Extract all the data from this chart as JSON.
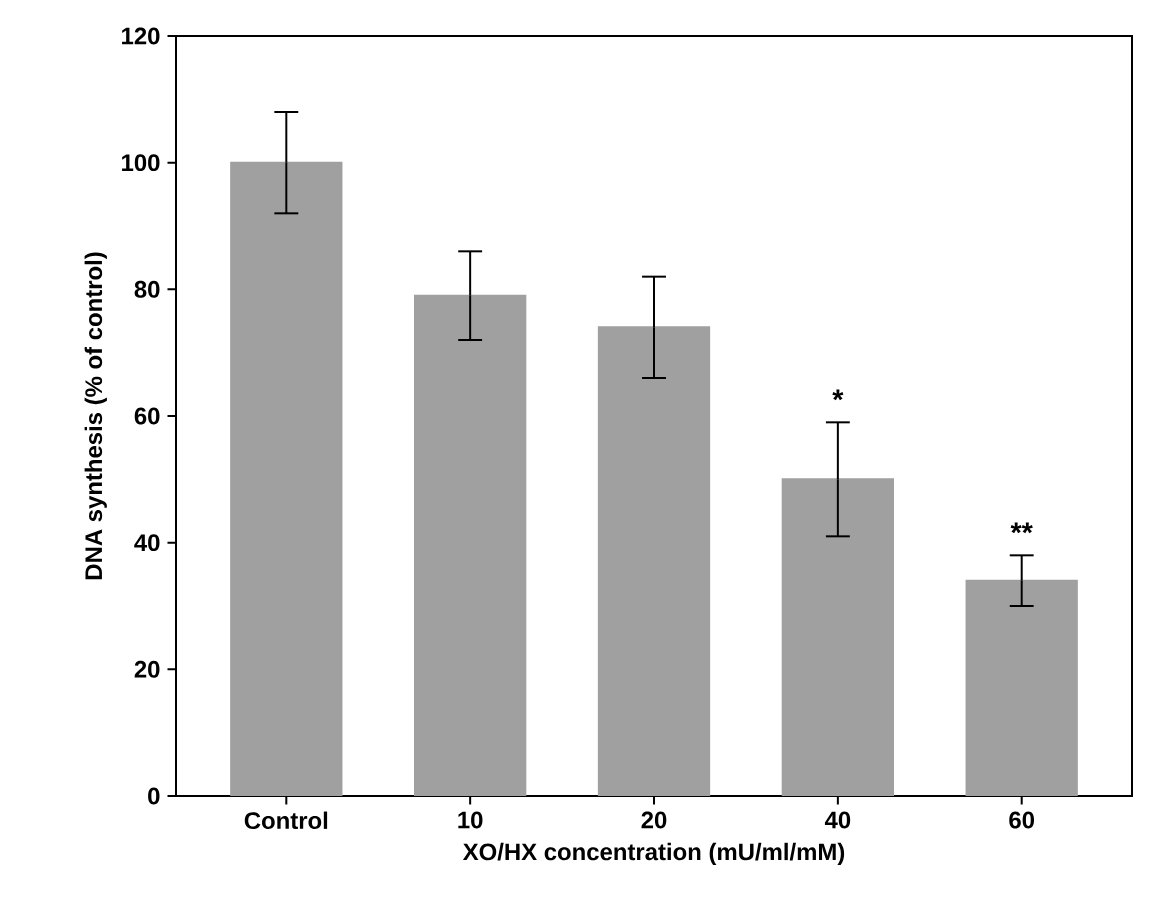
{
  "chart_data": {
    "type": "bar",
    "xlabel": "XO/HX concentration (mU/ml/mM)",
    "ylabel": "DNA synthesis (% of control)",
    "categories": [
      "Control",
      "10",
      "20",
      "40",
      "60"
    ],
    "values": [
      100,
      79,
      74,
      50,
      34
    ],
    "errors": [
      8,
      7,
      8,
      9,
      4
    ],
    "color": "#a0a0a0",
    "ylim": [
      0,
      120
    ],
    "yticks": [
      0,
      20,
      40,
      60,
      80,
      100,
      120
    ],
    "annotations": [
      "*",
      "**"
    ]
  }
}
